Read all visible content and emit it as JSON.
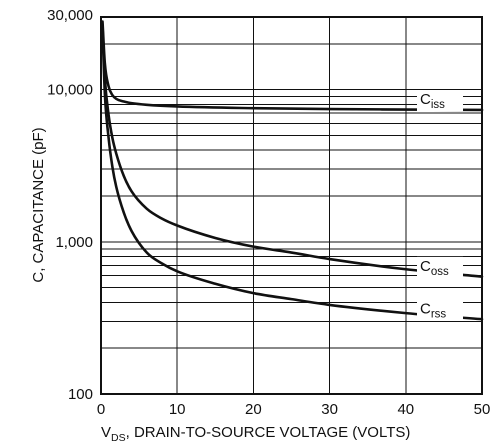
{
  "chart_data": {
    "type": "line",
    "title": "",
    "xlabel": {
      "prefix": "V",
      "subscript": "DS",
      "rest": ", DRAIN-TO-SOURCE VOLTAGE (VOLTS)"
    },
    "ylabel": "C, CAPACITANCE (pF)",
    "xlim": [
      0,
      50
    ],
    "ylim": [
      100,
      30000
    ],
    "y_scale": "log",
    "grid": true,
    "x_ticks": [
      0,
      10,
      20,
      30,
      40,
      50
    ],
    "x_tick_labels": [
      "0",
      "10",
      "20",
      "30",
      "40",
      "50"
    ],
    "y_tick_labels": [
      {
        "value": 100,
        "label": "100"
      },
      {
        "value": 1000,
        "label": "1,000"
      },
      {
        "value": 10000,
        "label": "10,000"
      },
      {
        "value": 30000,
        "label": "30,000"
      }
    ],
    "series": [
      {
        "name": "C",
        "sub": "iss",
        "x": [
          0.2,
          0.5,
          1,
          1.5,
          2,
          3,
          4,
          6,
          10,
          20,
          30,
          40,
          50
        ],
        "y": [
          28000,
          15000,
          10500,
          9200,
          8700,
          8350,
          8150,
          7950,
          7750,
          7550,
          7450,
          7400,
          7350
        ]
      },
      {
        "name": "C",
        "sub": "oss",
        "x": [
          0.2,
          0.5,
          1,
          1.5,
          2,
          3,
          4,
          6,
          8,
          10,
          15,
          20,
          25,
          30,
          40,
          50
        ],
        "y": [
          26000,
          12000,
          6800,
          4800,
          3800,
          2700,
          2150,
          1650,
          1420,
          1280,
          1060,
          930,
          850,
          770,
          660,
          590
        ]
      },
      {
        "name": "C",
        "sub": "rss",
        "x": [
          0.2,
          0.5,
          1,
          1.5,
          2,
          3,
          4,
          6,
          8,
          10,
          15,
          20,
          25,
          30,
          40,
          50
        ],
        "y": [
          25000,
          9500,
          4800,
          3100,
          2300,
          1550,
          1180,
          850,
          720,
          640,
          530,
          460,
          420,
          385,
          340,
          310
        ]
      }
    ]
  }
}
